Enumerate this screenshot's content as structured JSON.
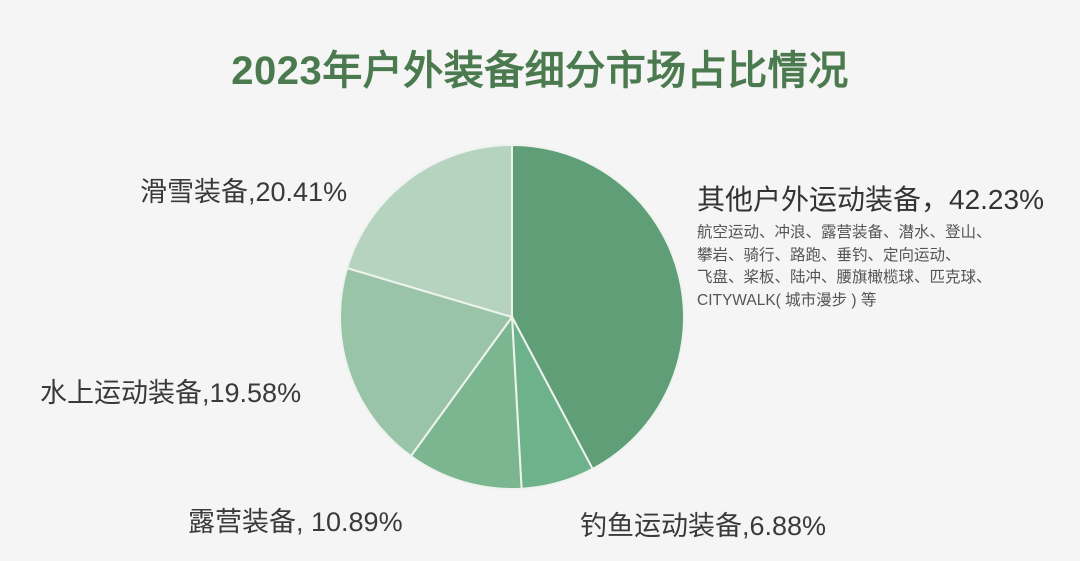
{
  "title": "2023年户外装备细分市场占比情况",
  "labels": {
    "other": "其他户外运动装备，42.23%",
    "ski": "滑雪装备,20.41%",
    "water": "水上运动装备,19.58%",
    "camping": "露营装备, 10.89%",
    "fishing": "钓鱼运动装备,6.88%"
  },
  "other_detail": [
    "航空运动、冲浪、露营装备、潜水、登山、",
    "攀岩、骑行、路跑、垂钓、定向运动、",
    "飞盘、桨板、陆冲、腰旗橄榄球、匹克球、",
    "CITYWALK( 城市漫步 ) 等"
  ],
  "chart_data": {
    "type": "pie",
    "title": "2023年户外装备细分市场占比情况",
    "categories": [
      "其他户外运动装备",
      "钓鱼运动装备",
      "露营装备",
      "水上运动装备",
      "滑雪装备"
    ],
    "values": [
      42.23,
      6.88,
      10.89,
      19.58,
      20.41
    ],
    "unit": "%",
    "colors": [
      "#5f9e77",
      "#6db28a",
      "#7bb690",
      "#99c4a7",
      "#b6d3bf"
    ],
    "start_angle": "12 o'clock, clockwise",
    "annotations": {
      "其他户外运动装备": "航空运动、冲浪、露营装备、潜水、登山、攀岩、骑行、路跑、垂钓、定向运动、飞盘、桨板、陆冲、腰旗橄榄球、匹克球、CITYWALK( 城市漫步 ) 等"
    }
  }
}
